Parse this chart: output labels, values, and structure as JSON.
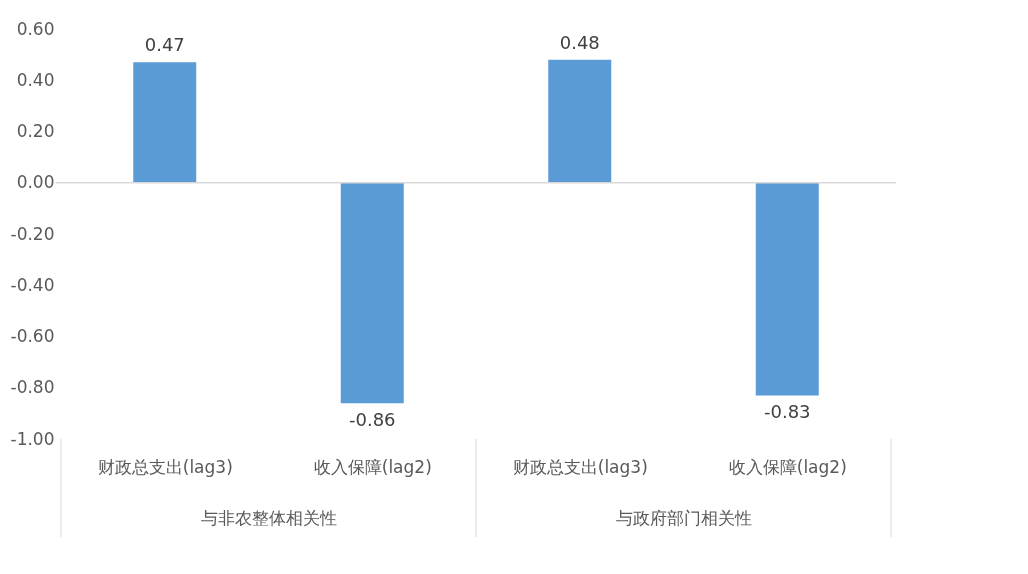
{
  "chart_data": {
    "type": "bar",
    "categories": [
      "财政总支出(lag3)",
      "收入保障(lag2)",
      "财政总支出(lag3)",
      "收入保障(lag2)"
    ],
    "values": [
      0.47,
      -0.86,
      0.48,
      -0.83
    ],
    "color": "#5b9bd5",
    "data_labels": true,
    "ylim": [
      -1.0,
      0.6
    ],
    "yticks": [
      {
        "value": -1.0,
        "label": "-1.00"
      },
      {
        "value": -0.8,
        "label": "-0.80"
      },
      {
        "value": -0.6,
        "label": "-0.60"
      },
      {
        "value": -0.4,
        "label": "-0.40"
      },
      {
        "value": -0.2,
        "label": "-0.20"
      },
      {
        "value": 0.0,
        "label": "0.00"
      },
      {
        "value": 0.2,
        "label": "0.20"
      },
      {
        "value": 0.4,
        "label": "0.40"
      },
      {
        "value": 0.6,
        "label": "0.60"
      }
    ],
    "grid": false,
    "ref_lines": [
      {
        "axis": "y",
        "value": 0,
        "color": "#d9d9d9"
      }
    ],
    "annotations": [
      "与非农整体相关性",
      "与政府部门相关性"
    ]
  }
}
